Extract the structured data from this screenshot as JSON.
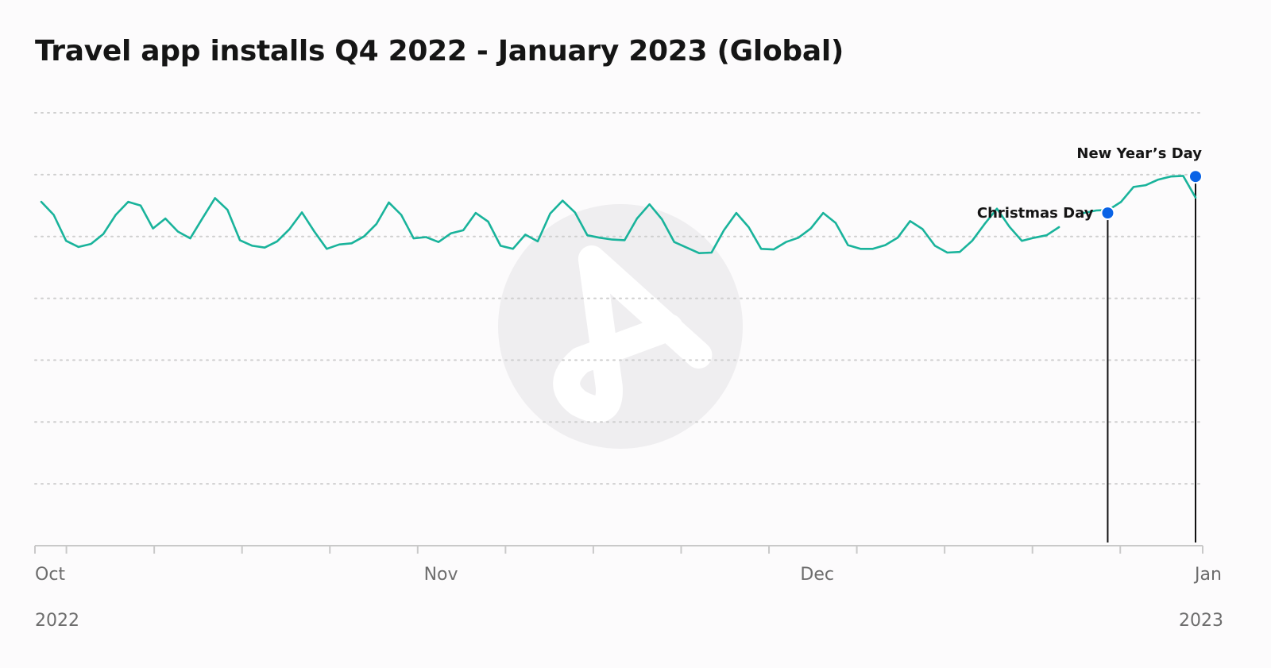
{
  "title": "Travel app installs Q4 2022 - January 2023 (Global)",
  "colors": {
    "line": "#19b39b",
    "marker": "#0a63e6",
    "grid": "#cfcfcf",
    "axis": "#c9c9c9",
    "text": "#151515",
    "tick_text": "#6d6d6d",
    "watermark": "#efeef0"
  },
  "watermark_icon": "adjust-logo",
  "chart_data": {
    "type": "line",
    "title": "Travel app installs Q4 2022 - January 2023 (Global)",
    "xlabel": "",
    "ylabel": "",
    "x_start": "2022-10-01",
    "x_end": "2023-01-01",
    "x_ticks": [
      {
        "label": "Oct",
        "date": "2022-10-01"
      },
      {
        "label": "Nov",
        "date": "2022-11-01"
      },
      {
        "label": "Dec",
        "date": "2022-12-01"
      },
      {
        "label": "Jan",
        "date": "2023-01-01"
      }
    ],
    "year_labels": [
      {
        "label": "2022",
        "date": "2022-10-01"
      },
      {
        "label": "2023",
        "date": "2023-01-01"
      }
    ],
    "ylim": [
      0,
      7
    ],
    "grid": true,
    "y_ticks_shown": false,
    "series": [
      {
        "values": [
          5.56,
          5.35,
          4.93,
          4.83,
          4.88,
          5.04,
          5.35,
          5.56,
          5.5,
          5.13,
          5.29,
          5.08,
          4.97,
          5.3,
          5.62,
          5.43,
          4.94,
          4.85,
          4.82,
          4.92,
          5.12,
          5.39,
          5.08,
          4.8,
          4.87,
          4.89,
          5.0,
          5.2,
          5.55,
          5.35,
          4.97,
          4.99,
          4.91,
          5.05,
          5.1,
          5.38,
          5.24,
          4.85,
          4.8,
          5.03,
          4.92,
          5.37,
          5.58,
          5.39,
          5.02,
          4.98,
          4.95,
          4.94,
          5.29,
          5.52,
          5.28,
          4.91,
          4.82,
          4.73,
          4.74,
          5.1,
          5.38,
          5.15,
          4.8,
          4.79,
          4.91,
          4.98,
          5.13,
          5.38,
          5.22,
          4.86,
          4.8,
          4.8,
          4.86,
          4.98,
          5.25,
          5.12,
          4.85,
          4.74,
          4.75,
          4.93,
          5.2,
          5.45,
          5.16,
          4.93,
          4.98,
          5.02,
          5.15,
          null,
          5.38,
          5.42,
          5.43,
          5.56,
          5.8,
          5.83,
          5.92,
          5.97,
          5.98,
          5.63
        ]
      }
    ],
    "annotations": [
      {
        "label": "Christmas Day",
        "date": "2022-12-25",
        "value": 5.38
      },
      {
        "label": "New Year’s Day",
        "date": "2023-01-01",
        "value": 5.97
      }
    ]
  }
}
